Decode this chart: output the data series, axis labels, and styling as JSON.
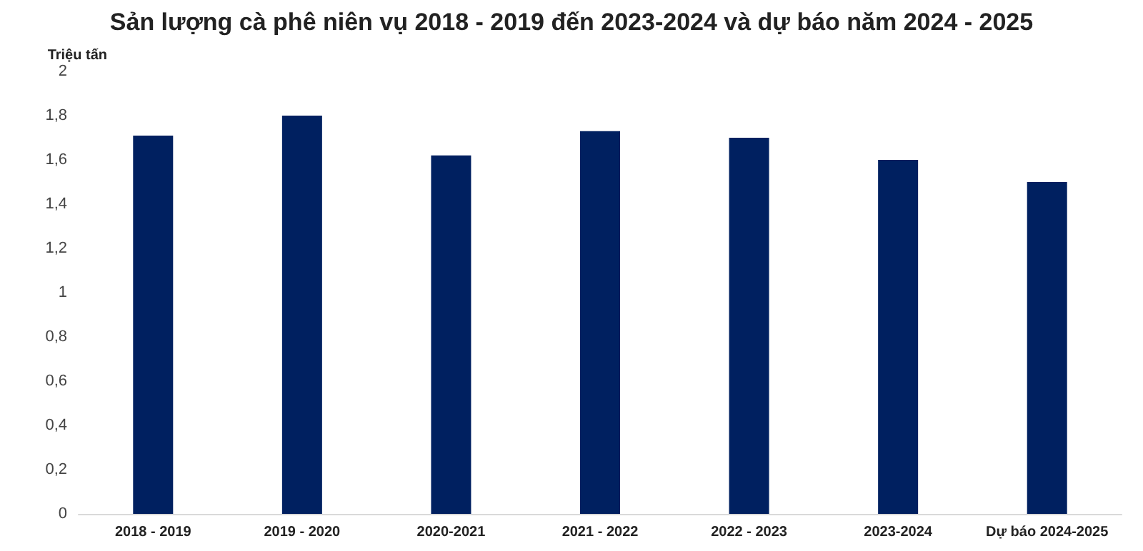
{
  "chart_data": {
    "type": "bar",
    "title": "Sản lượng cà phê niên vụ 2018 - 2019 đến 2023-2024 và dự báo năm 2024 - 2025",
    "ylabel": "Triệu tấn",
    "categories": [
      "2018 - 2019",
      "2019 - 2020",
      "2020-2021",
      "2021 - 2022",
      "2022 - 2023",
      "2023-2024",
      "Dự báo 2024-2025"
    ],
    "values": [
      1.71,
      1.8,
      1.62,
      1.73,
      1.7,
      1.6,
      1.5
    ],
    "color": "#002060",
    "ylim": [
      0,
      2
    ],
    "yticks": [
      0,
      {
        "value": 0.2,
        "label": "0,2"
      },
      {
        "value": 0.4,
        "label": "0,4"
      },
      {
        "value": 0.6,
        "label": "0,6"
      },
      {
        "value": 0.8,
        "label": "0,8"
      },
      1,
      {
        "value": 1.2,
        "label": "1,2"
      },
      {
        "value": 1.4,
        "label": "1,4"
      },
      {
        "value": 1.6,
        "label": "1,6"
      },
      {
        "value": 1.8,
        "label": "1,8"
      },
      2
    ],
    "grid": false
  }
}
